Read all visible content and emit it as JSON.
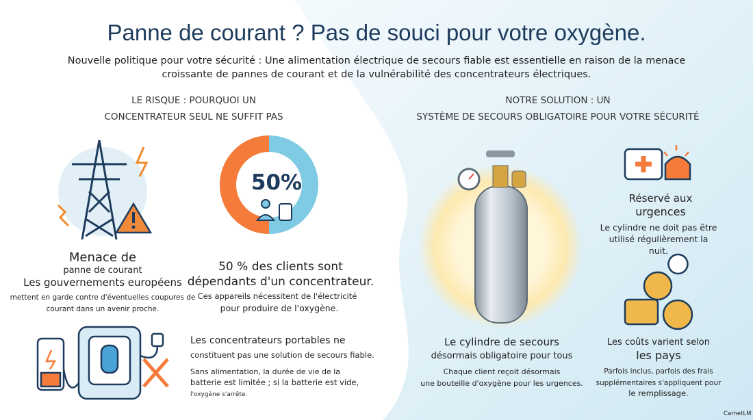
{
  "header": {
    "title": "Panne de courant ? Pas de souci pour votre oxygène.",
    "subtitle": [
      "Nouvelle politique pour votre sécurité : Une alimentation électrique de secours fiable est essentielle en raison de la menace",
      "croissante de pannes de courant et de la vulnérabilité des concentrateurs électriques."
    ]
  },
  "risk": {
    "heading": [
      "LE RISQUE : POURQUOI UN",
      "CONCENTRATEUR SEUL NE SUFFIT PAS"
    ],
    "threat": {
      "title": [
        "Menace de",
        "panne de courant",
        "Les gouvernements européens"
      ],
      "text": [
        "mettent en garde contre d'éventuelles coupures de",
        "courant dans un avenir proche."
      ]
    },
    "dependency": {
      "donut_label": "50%",
      "title": [
        "50 % des clients sont",
        "dépendants d'un concentrateur."
      ],
      "text": [
        "Ces appareils nécessitent de l'électricité",
        "pour produire de l'oxygène."
      ]
    },
    "portable": {
      "title": [
        "Les concentrateurs portables ne",
        "constituent pas une solution de secours fiable."
      ],
      "text": [
        "Sans alimentation, la durée de vie de la",
        "batterie est limitée ; si la batterie est vide,",
        "l'oxygène s'arrête."
      ]
    }
  },
  "solution": {
    "heading": [
      "NOTRE SOLUTION : UN",
      "SYSTÈME DE SECOURS OBLIGATOIRE POUR VOTRE SÉCURITÉ"
    ],
    "cylinder": {
      "title": [
        "Le cylindre de secours",
        "désormais obligatoire pour tous"
      ],
      "text": [
        "Chaque client reçoit désormais",
        "une bouteille d'oxygène pour les urgences."
      ]
    },
    "emergency": {
      "title": [
        "Réservé aux",
        "urgences"
      ],
      "text": [
        "Le cylindre ne doit pas être",
        "utilisé régulièrement la",
        "nuit."
      ]
    },
    "costs": {
      "title": [
        "Les coûts varient selon",
        "les pays"
      ],
      "text": [
        "Parfois inclus, parfois des frais",
        "supplémentaires s'appliquent pour",
        "le remplissage."
      ]
    }
  },
  "footer": {
    "brand": "CarnetLM"
  }
}
